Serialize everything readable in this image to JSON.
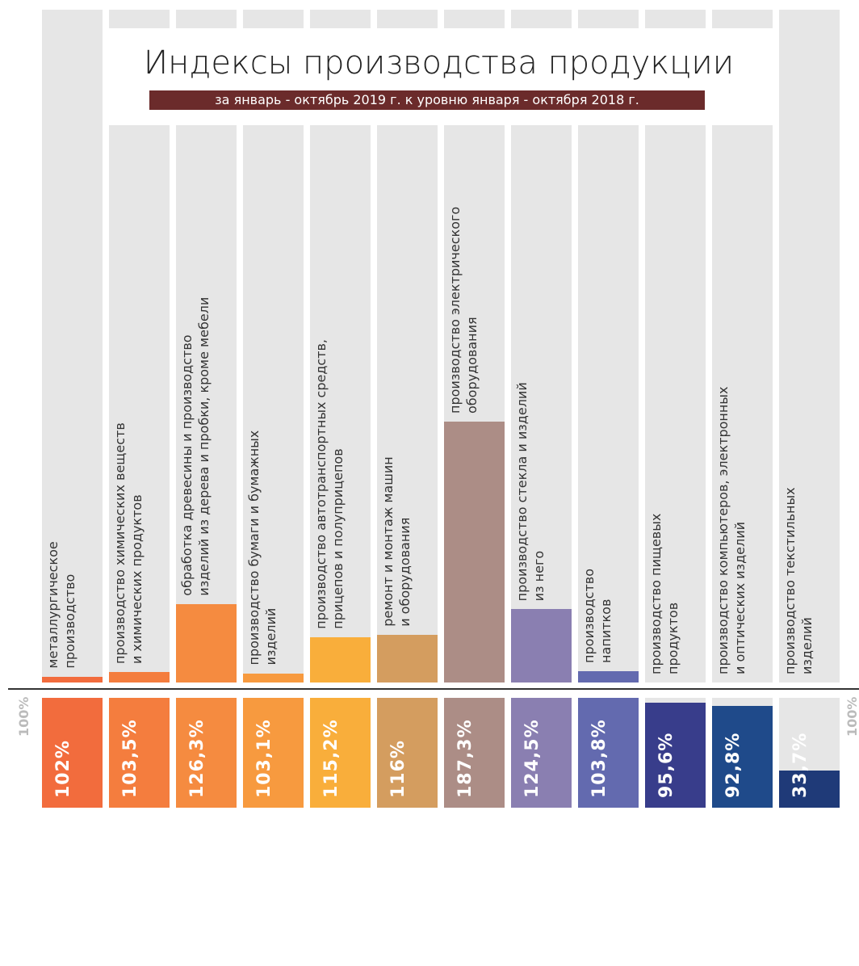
{
  "chart_data": {
    "type": "bar",
    "title": "Индексы производства продукции",
    "subtitle": "за январь - октябрь 2019 г. к уровню января - октября 2018 г.",
    "categories": [
      "металлургическое\nпроизводство",
      "производство химических веществ\nи химических продуктов",
      "обработка древесины и производство\nизделий из дерева и пробки, кроме мебели",
      "производство бумаги и бумажных\nизделий",
      "производство автотранспортных средств,\nприцепов и полуприцепов",
      "ремонт и монтаж машин\nи оборудования",
      "производство электрического\nоборудования",
      "производство стекла и изделий\nиз него",
      "производство\nнапитков",
      "производство пищевых\nпродуктов",
      "производство компьютеров, электронных\nи оптических изделий",
      "производство текстильных\nизделий"
    ],
    "values": [
      102,
      103.5,
      126.3,
      103.1,
      115.2,
      116,
      187.3,
      124.5,
      103.8,
      95.6,
      92.8,
      33.7
    ],
    "value_labels": [
      "102%",
      "103,5%",
      "126,3%",
      "103,1%",
      "115,2%",
      "116%",
      "187,3%",
      "124,5%",
      "103,8%",
      "95,6%",
      "92,8%",
      "33,7%"
    ],
    "colors": [
      "#f26c3d",
      "#f47d3e",
      "#f58b40",
      "#f79a3f",
      "#f9ae3b",
      "#d49d5f",
      "#ac8d86",
      "#8a7fb1",
      "#636aaf",
      "#383d8b",
      "#1f4a8a",
      "#1f3a78"
    ],
    "yticks": [
      {
        "value": 100,
        "label": "100%"
      }
    ]
  }
}
